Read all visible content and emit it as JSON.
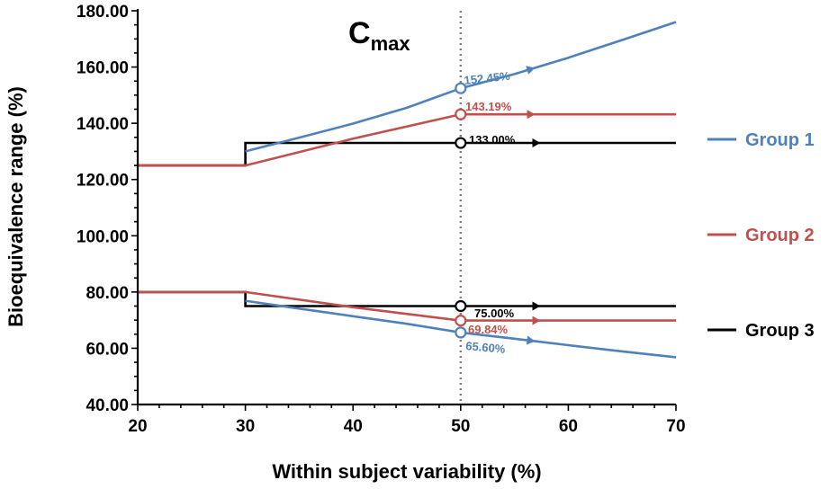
{
  "chart_data": {
    "type": "line",
    "title": {
      "main": "C",
      "sub": "max"
    },
    "xlabel": "Within subject variability (%)",
    "ylabel": "Bioequivalence range (%)",
    "xlim": [
      20,
      70
    ],
    "ylim": [
      40,
      180
    ],
    "xticks": [
      "20",
      "30",
      "40",
      "50",
      "60",
      "70"
    ],
    "yticks": [
      "40.00",
      "60.00",
      "80.00",
      "100.00",
      "120.00",
      "140.00",
      "160.00",
      "180.00"
    ],
    "reference_line_x": 50,
    "series": [
      {
        "name": "Group 1",
        "color": "#4f81bd",
        "upper": [
          [
            30,
            130
          ],
          [
            35,
            134.9
          ],
          [
            40,
            139.9
          ],
          [
            45,
            145.5
          ],
          [
            50,
            152.45
          ],
          [
            55,
            157.5
          ],
          [
            60,
            163.3
          ],
          [
            65,
            169.6
          ],
          [
            70,
            176.0
          ]
        ],
        "lower": [
          [
            30,
            76.9
          ],
          [
            35,
            74.1
          ],
          [
            40,
            71.4
          ],
          [
            45,
            68.7
          ],
          [
            50,
            65.6
          ],
          [
            55,
            63.4
          ],
          [
            60,
            61.1
          ],
          [
            65,
            58.9
          ],
          [
            70,
            56.8
          ]
        ]
      },
      {
        "name": "Group 2",
        "color": "#c0504d",
        "upper": [
          [
            20,
            125
          ],
          [
            30,
            125
          ],
          [
            40,
            134.5
          ],
          [
            50,
            143.19
          ],
          [
            70,
            143.19
          ]
        ],
        "lower": [
          [
            20,
            80
          ],
          [
            30,
            80
          ],
          [
            40,
            74.6
          ],
          [
            50,
            69.84
          ],
          [
            70,
            69.84
          ]
        ]
      },
      {
        "name": "Group 3",
        "color": "#000000",
        "upper": [
          [
            20,
            125
          ],
          [
            30,
            125
          ],
          [
            30,
            133
          ],
          [
            70,
            133
          ]
        ],
        "lower": [
          [
            20,
            80
          ],
          [
            30,
            80
          ],
          [
            30,
            75
          ],
          [
            70,
            75
          ]
        ]
      }
    ],
    "annotations": [
      {
        "x": 50,
        "y": 152.45,
        "text": "152.45%",
        "color": "#4f81bd",
        "series": 0,
        "bound": "upper"
      },
      {
        "x": 50,
        "y": 143.19,
        "text": "143.19%",
        "color": "#c0504d",
        "series": 1,
        "bound": "upper"
      },
      {
        "x": 50,
        "y": 133.0,
        "text": "133.00%",
        "color": "#000000",
        "series": 2,
        "bound": "upper"
      },
      {
        "x": 50,
        "y": 75.0,
        "text": "75.00%",
        "color": "#000000",
        "series": 2,
        "bound": "lower"
      },
      {
        "x": 50,
        "y": 69.84,
        "text": "69.84%",
        "color": "#c0504d",
        "series": 1,
        "bound": "lower"
      },
      {
        "x": 50,
        "y": 65.6,
        "text": "65.60%",
        "color": "#4f81bd",
        "series": 0,
        "bound": "lower"
      }
    ],
    "legend": "right"
  }
}
